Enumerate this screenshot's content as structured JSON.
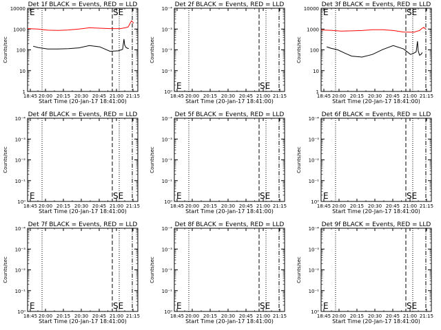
{
  "chart_data": [
    {
      "type": "line",
      "title": "Det 1f BLACK = Events, RED = LLD",
      "xlabel": "Start Time (20-Jan-17 18:41:00)",
      "ylabel": "Counts/sec",
      "yscale": "log",
      "ylim": [
        1,
        10000
      ],
      "yticks": [
        "1",
        "10",
        "100",
        "1000",
        "10000"
      ],
      "xlim": [
        "18:41",
        "21:20"
      ],
      "xticks": [
        "18:45",
        "20:00",
        "20:15",
        "20:30",
        "20:45",
        "21:00",
        "21:15"
      ],
      "annotations": [
        {
          "text": "SE",
          "position": "top"
        }
      ],
      "series": [
        {
          "color": "#000000",
          "x": [
            "18:49",
            "18:56",
            "19:10",
            "19:25",
            "19:40",
            "19:55",
            "20:10",
            "20:25",
            "20:40",
            "20:52",
            "20:58",
            "21:00",
            "21:01",
            "21:03",
            "21:05",
            "21:07"
          ],
          "y": [
            150,
            130,
            110,
            110,
            115,
            125,
            160,
            140,
            85,
            90,
            105,
            330,
            170,
            130,
            120,
            115
          ]
        },
        {
          "color": "#ff0000",
          "x": [
            "18:41",
            "18:56",
            "19:10",
            "19:25",
            "19:40",
            "19:55",
            "20:10",
            "20:25",
            "20:40",
            "20:55",
            "21:02",
            "21:06",
            "21:09",
            "21:11",
            "21:14"
          ],
          "y": [
            1050,
            1000,
            880,
            860,
            900,
            1000,
            1150,
            1100,
            1050,
            1050,
            1150,
            1250,
            1900,
            2500,
            1900
          ]
        }
      ]
    },
    {
      "type": "line",
      "title": "Det 2f BLACK = Events, RED = LLD",
      "xlabel": "Start Time (20-Jan-17 18:41:00)",
      "ylabel": "Counts/sec",
      "yscale": "log",
      "ylim": [
        1,
        10000
      ],
      "yticks": [
        "10⁰",
        "10⁻¹",
        "10⁻²",
        "10⁻³",
        "10⁻⁴"
      ],
      "xlim": [
        "18:41",
        "21:20"
      ],
      "xticks": [
        "18:45",
        "20:00",
        "20:15",
        "20:30",
        "20:45",
        "21:00",
        "21:15"
      ],
      "annotations": [
        {
          "text": "SE",
          "position": "bottom"
        }
      ],
      "series": []
    },
    {
      "type": "line",
      "title": "Det 3f BLACK = Events, RED = LLD",
      "xlabel": "Start Time (20-Jan-17 18:41:00)",
      "ylabel": "Counts/sec",
      "yscale": "log",
      "ylim": [
        1,
        10000
      ],
      "yticks": [
        "1",
        "10",
        "100",
        "1000",
        "10000"
      ],
      "xlim": [
        "18:41",
        "21:20"
      ],
      "xticks": [
        "18:45",
        "20:00",
        "20:15",
        "20:30",
        "20:45",
        "21:00",
        "21:15"
      ],
      "annotations": [
        {
          "text": "SE",
          "position": "top"
        }
      ],
      "series": [
        {
          "color": "#000000",
          "x": [
            "18:49",
            "18:55",
            "19:05",
            "19:15",
            "19:25",
            "19:40",
            "19:55",
            "20:10",
            "20:25",
            "20:40",
            "20:50",
            "20:55",
            "20:58",
            "21:00",
            "21:01",
            "21:03",
            "21:05",
            "21:07"
          ],
          "y": [
            140,
            120,
            100,
            70,
            50,
            45,
            60,
            105,
            160,
            110,
            60,
            70,
            80,
            260,
            90,
            55,
            60,
            75
          ]
        },
        {
          "color": "#ff0000",
          "x": [
            "18:41",
            "18:55",
            "19:10",
            "19:25",
            "19:40",
            "19:55",
            "20:10",
            "20:25",
            "20:40",
            "20:55",
            "21:00",
            "21:03",
            "21:06",
            "21:09",
            "21:12"
          ],
          "y": [
            900,
            870,
            800,
            820,
            850,
            920,
            930,
            850,
            720,
            700,
            800,
            850,
            1050,
            1200,
            1000
          ]
        }
      ]
    },
    {
      "type": "line",
      "title": "Det 4f BLACK = Events, RED = LLD",
      "xlabel": "Start Time (20-Jan-17 18:41:00)",
      "ylabel": "Counts/sec",
      "yscale": "log",
      "ylim": [
        1,
        10000
      ],
      "yticks": [
        "10⁰",
        "10⁻¹",
        "10⁻²",
        "10⁻³",
        "10⁻⁴"
      ],
      "xlim": [
        "18:41",
        "21:20"
      ],
      "xticks": [
        "18:45",
        "20:00",
        "20:15",
        "20:30",
        "20:45",
        "21:00",
        "21:15"
      ],
      "annotations": [
        {
          "text": "SE",
          "position": "bottom"
        }
      ],
      "series": []
    },
    {
      "type": "line",
      "title": "Det 5f BLACK = Events, RED = LLD",
      "xlabel": "Start Time (20-Jan-17 18:41:00)",
      "ylabel": "Counts/sec",
      "yscale": "log",
      "ylim": [
        1,
        10000
      ],
      "yticks": [
        "10⁰",
        "10⁻¹",
        "10⁻²",
        "10⁻³",
        "10⁻⁴"
      ],
      "xlim": [
        "18:41",
        "21:20"
      ],
      "xticks": [
        "18:45",
        "20:00",
        "20:15",
        "20:30",
        "20:45",
        "21:00",
        "21:15"
      ],
      "annotations": [
        {
          "text": "SE",
          "position": "bottom"
        }
      ],
      "series": []
    },
    {
      "type": "line",
      "title": "Det 6f BLACK = Events, RED = LLD",
      "xlabel": "Start Time (20-Jan-17 18:41:00)",
      "ylabel": "Counts/sec",
      "yscale": "log",
      "ylim": [
        1,
        10000
      ],
      "yticks": [
        "10⁰",
        "10⁻¹",
        "10⁻²",
        "10⁻³",
        "10⁻⁴"
      ],
      "xlim": [
        "18:41",
        "21:20"
      ],
      "xticks": [
        "18:45",
        "20:00",
        "20:15",
        "20:30",
        "20:45",
        "21:00",
        "21:15"
      ],
      "annotations": [
        {
          "text": "SE",
          "position": "bottom"
        }
      ],
      "series": []
    },
    {
      "type": "line",
      "title": "Det 7f BLACK = Events, RED = LLD",
      "xlabel": "Start Time (20-Jan-17 18:41:00)",
      "ylabel": "Counts/sec",
      "yscale": "log",
      "ylim": [
        1,
        10000
      ],
      "yticks": [
        "10⁰",
        "10⁻¹",
        "10⁻²",
        "10⁻³",
        "10⁻⁴"
      ],
      "xlim": [
        "18:41",
        "21:20"
      ],
      "xticks": [
        "18:45",
        "20:00",
        "20:15",
        "20:30",
        "20:45",
        "21:00",
        "21:15"
      ],
      "annotations": [
        {
          "text": "SE",
          "position": "bottom"
        }
      ],
      "series": []
    },
    {
      "type": "line",
      "title": "Det 8f BLACK = Events, RED = LLD",
      "xlabel": "Start Time (20-Jan-17 18:41:00)",
      "ylabel": "Counts/sec",
      "yscale": "log",
      "ylim": [
        1,
        10000
      ],
      "yticks": [
        "10⁰",
        "10⁻¹",
        "10⁻²",
        "10⁻³",
        "10⁻⁴"
      ],
      "xlim": [
        "18:41",
        "21:20"
      ],
      "xticks": [
        "18:45",
        "20:00",
        "20:15",
        "20:30",
        "20:45",
        "21:00",
        "21:15"
      ],
      "annotations": [
        {
          "text": "SE",
          "position": "bottom"
        }
      ],
      "series": []
    },
    {
      "type": "line",
      "title": "Det 9f BLACK = Events, RED = LLD",
      "xlabel": "Start Time (20-Jan-17 18:41:00)",
      "ylabel": "Counts/sec",
      "yscale": "log",
      "ylim": [
        1,
        10000
      ],
      "yticks": [
        "10⁰",
        "10⁻¹",
        "10⁻²",
        "10⁻³",
        "10⁻⁴"
      ],
      "xlim": [
        "18:41",
        "21:20"
      ],
      "xticks": [
        "18:45",
        "20:00",
        "20:15",
        "20:30",
        "20:45",
        "21:00",
        "21:15"
      ],
      "annotations": [
        {
          "text": "SE",
          "position": "bottom"
        }
      ],
      "series": []
    }
  ],
  "markers": {
    "dotted": [
      "19:55",
      "21:16"
    ],
    "dashed": [
      "20:52",
      "21:17"
    ],
    "dash_dot": [
      "21:17"
    ]
  },
  "colors": {
    "events": "#000000",
    "lld": "#ff0000",
    "background": "#ffffff"
  }
}
